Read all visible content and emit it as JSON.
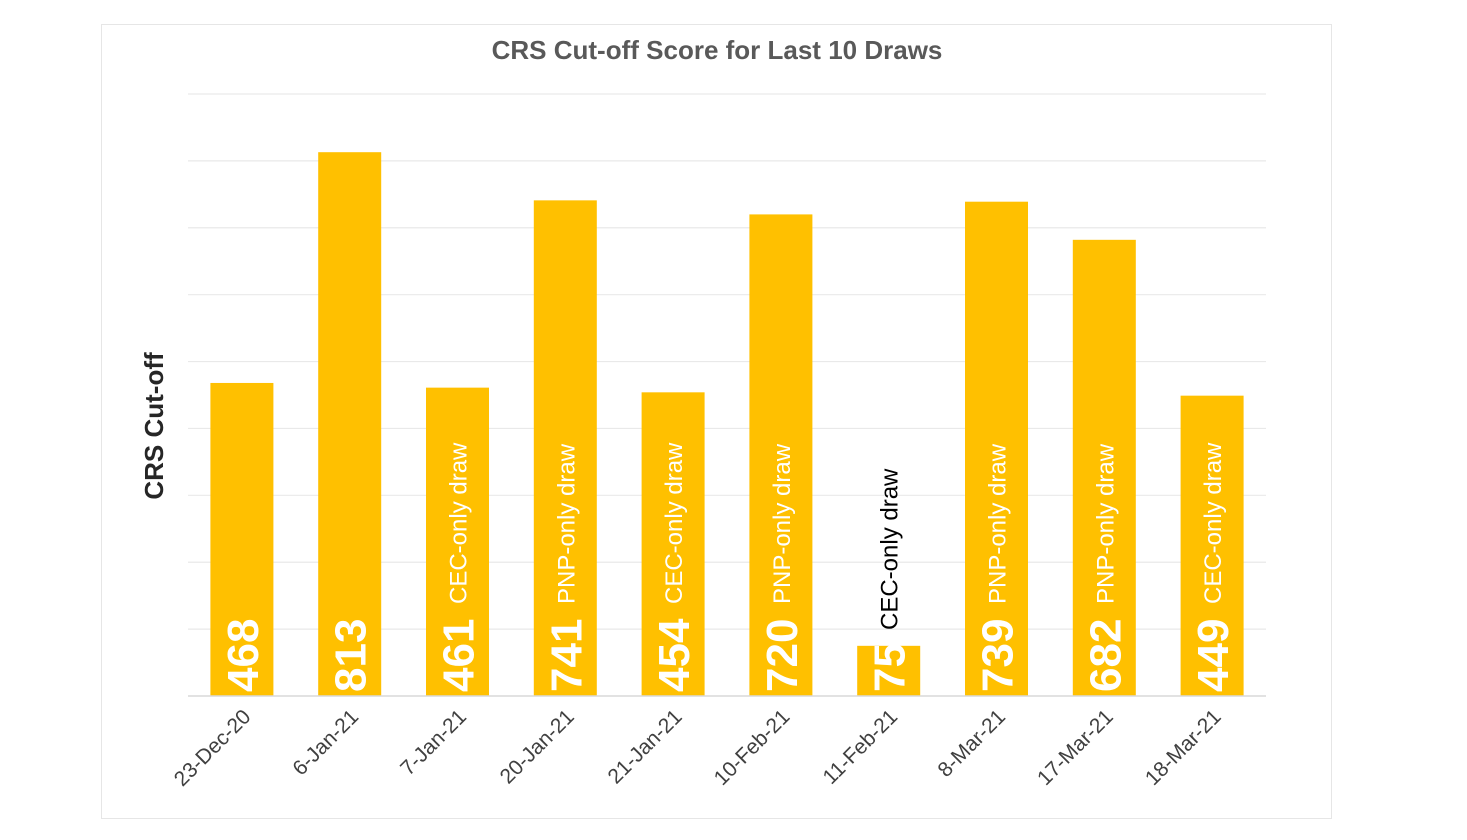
{
  "chart_data": {
    "type": "bar",
    "title": "CRS Cut-off Score for Last 10 Draws",
    "xlabel": "",
    "ylabel": "CRS Cut-off",
    "ylim": [
      0,
      900
    ],
    "grid": true,
    "colors": {
      "bar": "#ffc000",
      "value_label": "#ffffff",
      "title": "#595959"
    },
    "categories": [
      "23-Dec-20",
      "6-Jan-21",
      "7-Jan-21",
      "20-Jan-21",
      "21-Jan-21",
      "10-Feb-21",
      "11-Feb-21",
      "8-Mar-21",
      "17-Mar-21",
      "18-Mar-21"
    ],
    "values": [
      468,
      813,
      461,
      741,
      454,
      720,
      75,
      739,
      682,
      449
    ],
    "annotations": [
      "",
      "",
      "CEC-only draw",
      "PNP-only draw",
      "CEC-only draw",
      "PNP-only draw",
      "CEC-only draw",
      "PNP-only draw",
      "PNP-only draw",
      "CEC-only draw"
    ]
  }
}
